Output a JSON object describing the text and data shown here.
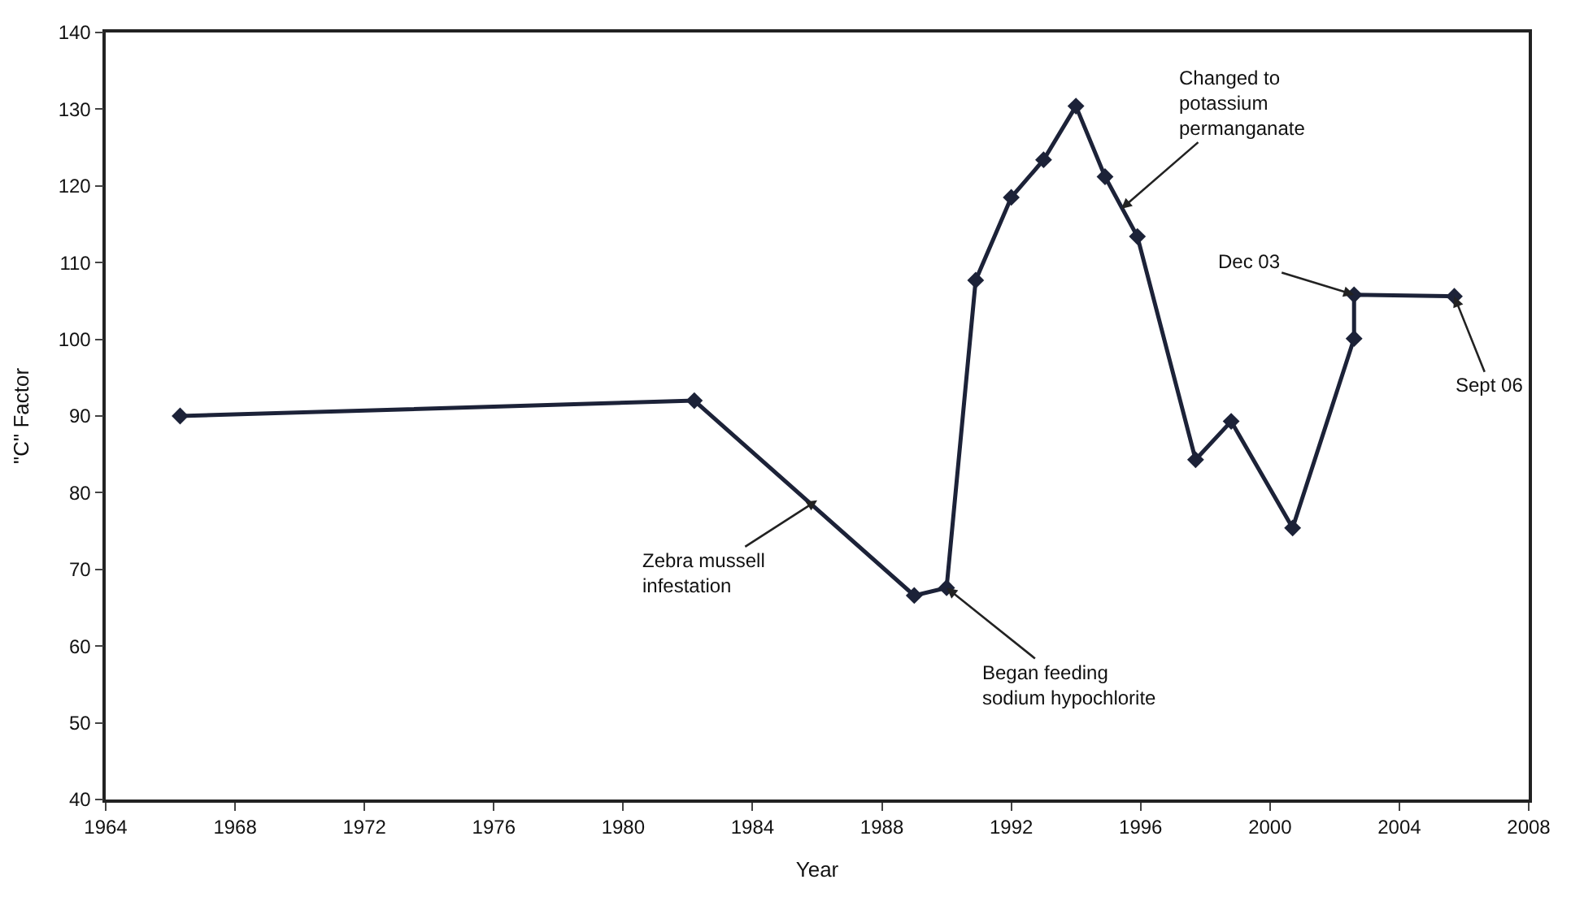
{
  "chart_data": {
    "type": "line",
    "xlabel": "Year",
    "ylabel": "\"C\" Factor",
    "x": [
      1966.3,
      1982.2,
      1989.0,
      1990.0,
      1990.9,
      1992.0,
      1993.0,
      1994.0,
      1994.9,
      1995.9,
      1997.7,
      1998.8,
      2000.7,
      2002.6,
      2002.6,
      2005.7
    ],
    "series": [
      {
        "color": "#1c2238",
        "values": [
          90,
          92,
          66.6,
          67.6,
          107.7,
          118.5,
          123.4,
          130.4,
          121.2,
          113.4,
          84.3,
          89.3,
          75.4,
          100.1,
          105.8,
          105.6
        ]
      }
    ],
    "xlim": [
      1964,
      2008
    ],
    "xticks": [
      1964,
      1968,
      1972,
      1976,
      1980,
      1984,
      1988,
      1992,
      1996,
      2000,
      2004,
      2008
    ],
    "ylim": [
      40,
      140
    ],
    "yticks": [
      40,
      50,
      60,
      70,
      80,
      90,
      100,
      110,
      120,
      130,
      140
    ],
    "marker": "diamond",
    "line_style": "solid",
    "annotations": [
      {
        "text": "Zebra mussell\ninfestation",
        "x": 1986,
        "y": 79
      },
      {
        "text": "Began feeding\nsodium hypochlorite",
        "x": 1990.0,
        "y": 67.6
      },
      {
        "text": "Changed to\npotassium\npermanganate",
        "x": 1995.4,
        "y": 117
      },
      {
        "text": "Dec 03",
        "x": 2002.6,
        "y": 105.8
      },
      {
        "text": "Sept 06",
        "x": 2005.7,
        "y": 105.6
      }
    ]
  }
}
